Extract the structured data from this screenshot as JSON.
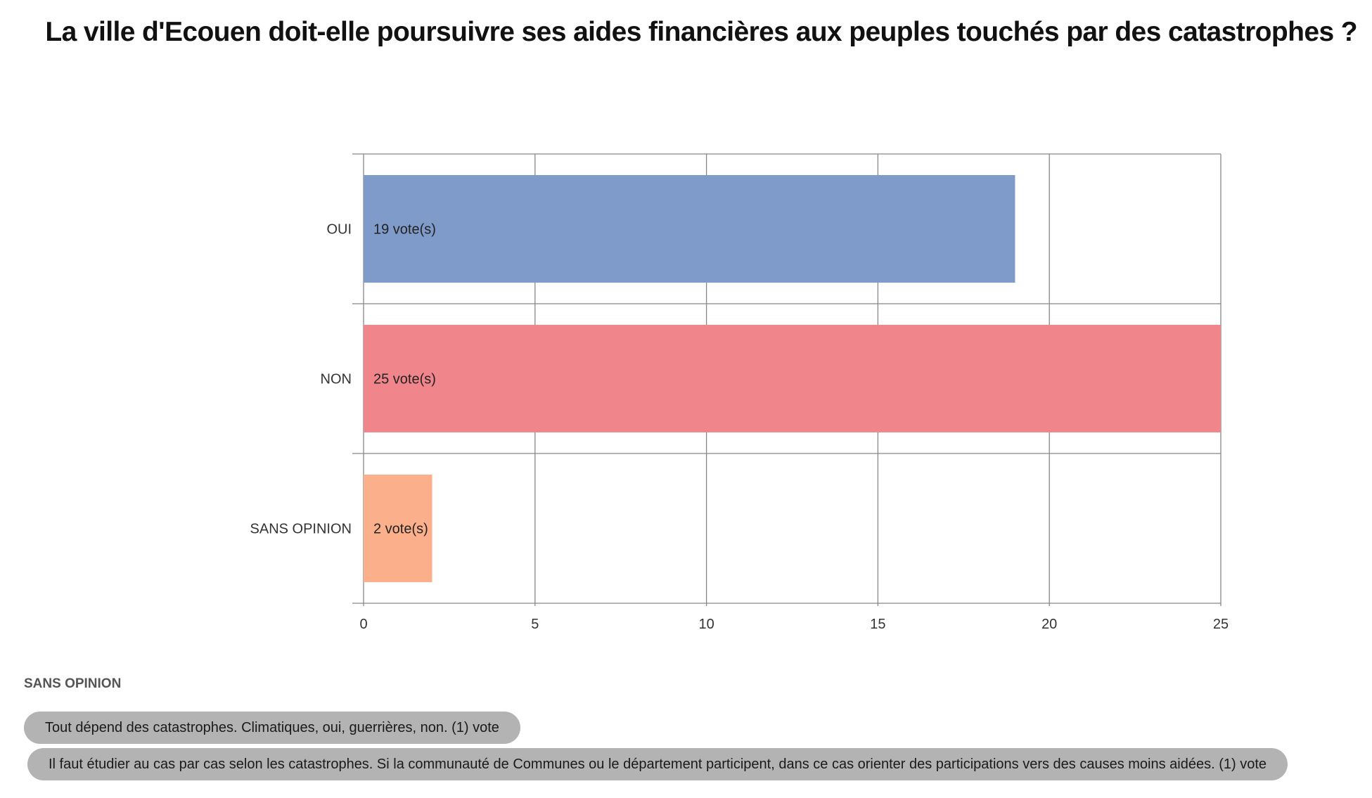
{
  "title": "La ville d'Ecouen doit-elle poursuivre ses aides financières aux peuples touchés par des catastrophes ?",
  "colors": {
    "oui": "#7f9bca",
    "non": "#f0868c",
    "sans_opinion": "#fbb08b",
    "grid": "#888888",
    "pill": "#b3b3b3"
  },
  "chart_data": {
    "type": "bar",
    "orientation": "horizontal",
    "title": "La ville d'Ecouen doit-elle poursuivre ses aides financières aux peuples touchés par des catastrophes ?",
    "categories": [
      "OUI",
      "NON",
      "SANS OPINION"
    ],
    "values": [
      19,
      25,
      2
    ],
    "data_labels": [
      "19 vote(s)",
      "25 vote(s)",
      "2 vote(s)"
    ],
    "xlabel": "",
    "ylabel": "",
    "xlim": [
      0,
      25
    ],
    "x_ticks": [
      0,
      5,
      10,
      15,
      20,
      25
    ],
    "grid": true,
    "legend": "none"
  },
  "comments_section": {
    "heading": "SANS OPINION",
    "items": [
      "Tout dépend des catastrophes. Climatiques, oui, guerrières, non. (1) vote",
      "Il faut étudier au cas par cas selon les catastrophes. Si la communauté de Communes ou le département participent, dans ce cas orienter des participations vers des causes moins aidées. (1) vote"
    ]
  }
}
